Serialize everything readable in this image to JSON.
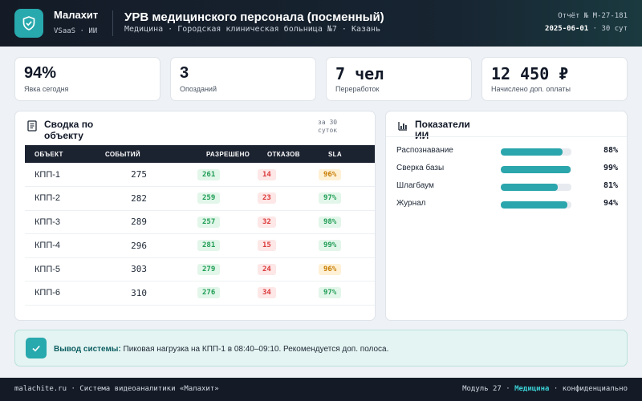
{
  "header": {
    "brand": "Малахит",
    "brand_sub": "VSaaS · ИИ",
    "title": "УРВ медицинского персонала (посменный)",
    "subtitle": "Медицина · Городская клиническая больница №7 · Казань",
    "report_id": "Отчёт № М-27-181",
    "report_date": "2025-06-01",
    "report_period": "· 30 сут"
  },
  "kpis": [
    {
      "value": "94%",
      "label": "Явка сегодня"
    },
    {
      "value": "3",
      "label": "Опозданий"
    },
    {
      "value": "7 чел",
      "label": "Переработок"
    },
    {
      "value": "12 450 ₽",
      "label": "Начислено доп. оплаты"
    }
  ],
  "summary": {
    "title": "Сводка по объекту",
    "period": "за 30 суток",
    "columns": [
      "ОБЪЕКТ",
      "СОБЫТИЙ",
      "РАЗРЕШЕНО",
      "ОТКАЗОВ",
      "SLA"
    ],
    "rows": [
      {
        "obj": "КПП-1",
        "events": "275",
        "allowed": "261",
        "denied": "14",
        "sla": "96%",
        "sla_status": "amber"
      },
      {
        "obj": "КПП-2",
        "events": "282",
        "allowed": "259",
        "denied": "23",
        "sla": "97%",
        "sla_status": "green"
      },
      {
        "obj": "КПП-3",
        "events": "289",
        "allowed": "257",
        "denied": "32",
        "sla": "98%",
        "sla_status": "green"
      },
      {
        "obj": "КПП-4",
        "events": "296",
        "allowed": "281",
        "denied": "15",
        "sla": "99%",
        "sla_status": "green"
      },
      {
        "obj": "КПП-5",
        "events": "303",
        "allowed": "279",
        "denied": "24",
        "sla": "96%",
        "sla_status": "amber"
      },
      {
        "obj": "КПП-6",
        "events": "310",
        "allowed": "276",
        "denied": "34",
        "sla": "97%",
        "sla_status": "green"
      }
    ]
  },
  "ai": {
    "title": "Показатели ИИ",
    "metrics": [
      {
        "label": "Распознавание",
        "value": "88%",
        "fraction": 0.88
      },
      {
        "label": "Сверка базы",
        "value": "99%",
        "fraction": 0.99
      },
      {
        "label": "Шлагбаум",
        "value": "81%",
        "fraction": 0.81
      },
      {
        "label": "Журнал",
        "value": "94%",
        "fraction": 0.94
      }
    ]
  },
  "notice": {
    "label": "Вывод системы:",
    "text": "Пиковая нагрузка на КПП-1 в 08:40–09:10. Рекомендуется доп. полоса."
  },
  "footer": {
    "left": "malachite.ru · Система видеоаналитики «Малахит»",
    "module": "Модуль 27 ·",
    "domain": "Медицина",
    "conf": "· конфиденциально"
  },
  "colors": {
    "accent": "#27a9ad",
    "dark": "#141b27",
    "ok": "#1f9d55",
    "bad": "#dc3b3b",
    "warn": "#c77c00"
  }
}
